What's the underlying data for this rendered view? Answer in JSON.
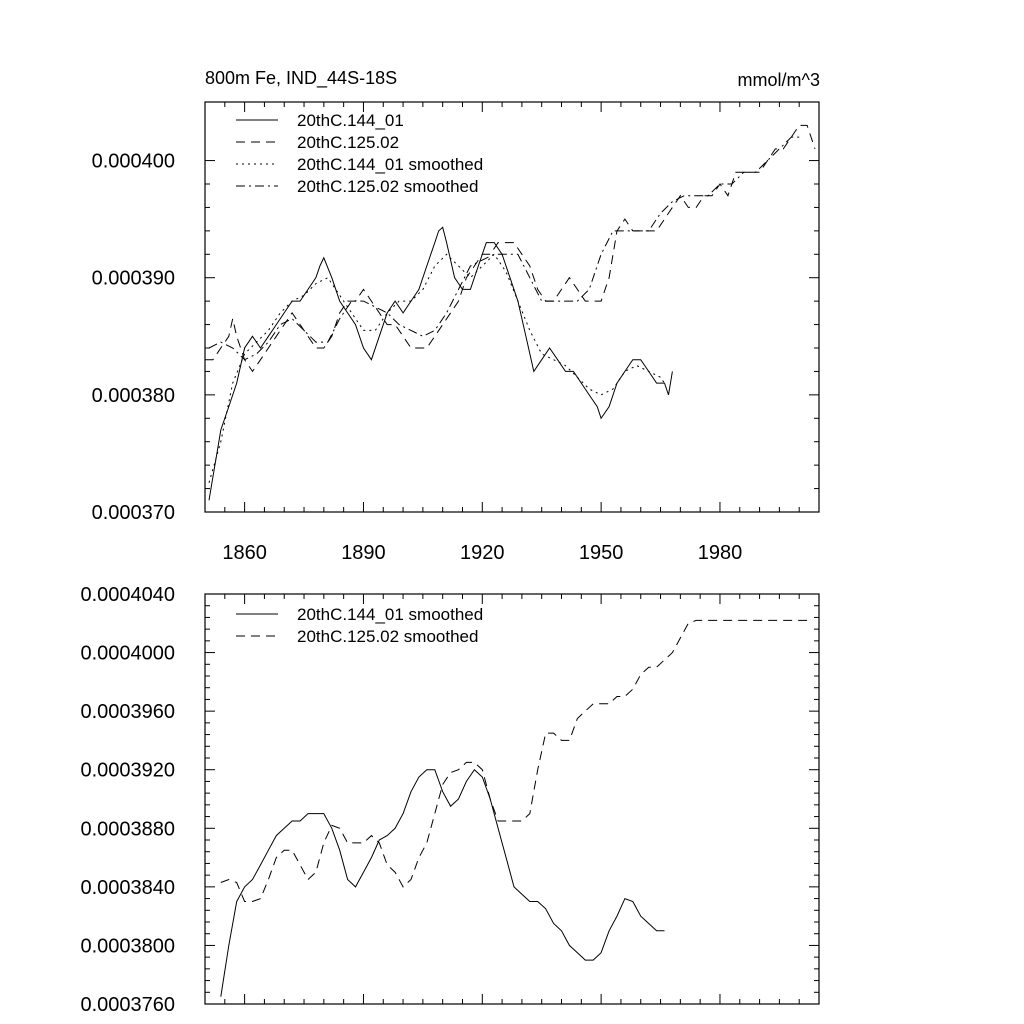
{
  "chart_data": [
    {
      "id": "top",
      "type": "line",
      "title": "800m Fe, IND_44S-18S",
      "units": "mmol/m^3",
      "xlabel": "",
      "ylabel": "",
      "xlim": [
        1850,
        2005
      ],
      "ylim": [
        0.00037,
        0.000405
      ],
      "x_ticks": [
        1860,
        1890,
        1920,
        1950,
        1980
      ],
      "x_tick_labels": [
        "1860",
        "1890",
        "1920",
        "1950",
        "1980"
      ],
      "y_ticks": [
        0.00037,
        0.00038,
        0.00039,
        0.0004
      ],
      "y_tick_labels": [
        "0.000370",
        "0.000380",
        "0.000390",
        "0.000400"
      ],
      "legend_position": "top-left",
      "series": [
        {
          "name": "20thC.144_01",
          "style": "solid",
          "x": [
            1851,
            1852,
            1853,
            1854,
            1856,
            1858,
            1860,
            1862,
            1864,
            1866,
            1868,
            1870,
            1872,
            1874,
            1876,
            1878,
            1879,
            1880,
            1882,
            1884,
            1886,
            1888,
            1890,
            1892,
            1894,
            1896,
            1898,
            1900,
            1902,
            1904,
            1906,
            1908,
            1909,
            1910,
            1911,
            1913,
            1915,
            1917,
            1919,
            1921,
            1923,
            1925,
            1927,
            1929,
            1931,
            1933,
            1935,
            1937,
            1939,
            1941,
            1943,
            1945,
            1947,
            1949,
            1950,
            1952,
            1954,
            1956,
            1958,
            1960,
            1962,
            1964,
            1966,
            1967,
            1968
          ],
          "y": [
            0.000371,
            0.000373,
            0.000375,
            0.000377,
            0.000379,
            0.000381,
            0.000384,
            0.000385,
            0.000384,
            0.000385,
            0.000386,
            0.000387,
            0.000388,
            0.000388,
            0.000389,
            0.00039,
            0.000391,
            0.0003917,
            0.00039,
            0.000388,
            0.000387,
            0.000386,
            0.000384,
            0.000383,
            0.000385,
            0.000387,
            0.000388,
            0.000387,
            0.000388,
            0.000389,
            0.000391,
            0.000393,
            0.000394,
            0.0003943,
            0.000393,
            0.00039,
            0.000389,
            0.000389,
            0.000391,
            0.000393,
            0.000393,
            0.000392,
            0.00039,
            0.000388,
            0.000385,
            0.000382,
            0.000383,
            0.000384,
            0.000383,
            0.000382,
            0.000382,
            0.000381,
            0.00038,
            0.000379,
            0.000378,
            0.000379,
            0.000381,
            0.000382,
            0.000383,
            0.000383,
            0.000382,
            0.000381,
            0.000381,
            0.00038,
            0.000382
          ]
        },
        {
          "name": "20thC.125.02",
          "style": "dashed",
          "x": [
            1850,
            1852,
            1854,
            1856,
            1857,
            1858,
            1860,
            1862,
            1864,
            1866,
            1868,
            1870,
            1872,
            1874,
            1876,
            1878,
            1880,
            1882,
            1884,
            1886,
            1888,
            1890,
            1892,
            1894,
            1896,
            1898,
            1900,
            1902,
            1904,
            1906,
            1908,
            1910,
            1912,
            1914,
            1916,
            1918,
            1920,
            1922,
            1924,
            1926,
            1928,
            1930,
            1932,
            1934,
            1936,
            1938,
            1940,
            1942,
            1944,
            1946,
            1948,
            1950,
            1952,
            1954,
            1956,
            1958,
            1960,
            1962,
            1964,
            1966,
            1968,
            1970,
            1972,
            1974,
            1976,
            1978,
            1980,
            1982,
            1984,
            1986,
            1988,
            1990,
            1992,
            1994,
            1996,
            1998,
            2000,
            2002,
            2004
          ],
          "y": [
            0.000383,
            0.000383,
            0.000384,
            0.000385,
            0.0003865,
            0.000385,
            0.000383,
            0.000382,
            0.000383,
            0.000384,
            0.000385,
            0.000386,
            0.000387,
            0.000386,
            0.000385,
            0.000384,
            0.000384,
            0.000385,
            0.000387,
            0.000388,
            0.000388,
            0.000389,
            0.000388,
            0.000387,
            0.000386,
            0.000386,
            0.000385,
            0.000384,
            0.000384,
            0.000384,
            0.000385,
            0.000386,
            0.000387,
            0.000388,
            0.00039,
            0.000391,
            0.000392,
            0.000392,
            0.000393,
            0.000393,
            0.000393,
            0.000392,
            0.000391,
            0.000389,
            0.000388,
            0.000388,
            0.000389,
            0.00039,
            0.000389,
            0.000388,
            0.000388,
            0.000388,
            0.00039,
            0.000394,
            0.000395,
            0.000394,
            0.000394,
            0.000394,
            0.000394,
            0.000395,
            0.000396,
            0.000397,
            0.000396,
            0.000396,
            0.000397,
            0.000397,
            0.000398,
            0.000397,
            0.000399,
            0.000399,
            0.000399,
            0.000399,
            0.0004,
            0.000401,
            0.000401,
            0.000402,
            0.000403,
            0.000403,
            0.000401
          ]
        },
        {
          "name": "20thC.144_01 smoothed",
          "style": "dotted",
          "x": [
            1851,
            1854,
            1857,
            1860,
            1863,
            1866,
            1869,
            1872,
            1875,
            1878,
            1881,
            1884,
            1887,
            1890,
            1893,
            1896,
            1899,
            1902,
            1905,
            1908,
            1911,
            1914,
            1917,
            1920,
            1923,
            1926,
            1929,
            1932,
            1935,
            1938,
            1941,
            1944,
            1947,
            1950,
            1953,
            1956,
            1959,
            1962,
            1965,
            1966
          ],
          "y": [
            0.0003725,
            0.000376,
            0.000381,
            0.0003835,
            0.0003845,
            0.0003855,
            0.000387,
            0.000388,
            0.0003885,
            0.0003895,
            0.00039,
            0.0003885,
            0.000387,
            0.0003855,
            0.0003855,
            0.000387,
            0.000388,
            0.000388,
            0.000389,
            0.000391,
            0.000392,
            0.000391,
            0.00039,
            0.000391,
            0.000392,
            0.0003905,
            0.000388,
            0.0003855,
            0.0003835,
            0.000383,
            0.0003825,
            0.0003815,
            0.0003805,
            0.00038,
            0.0003805,
            0.000382,
            0.0003825,
            0.000382,
            0.0003815,
            0.000381
          ]
        },
        {
          "name": "20thC.125.02 smoothed",
          "style": "dashdot",
          "x": [
            1851,
            1854,
            1857,
            1860,
            1863,
            1866,
            1869,
            1872,
            1875,
            1878,
            1881,
            1884,
            1887,
            1890,
            1893,
            1896,
            1899,
            1902,
            1905,
            1908,
            1911,
            1914,
            1917,
            1920,
            1923,
            1926,
            1929,
            1932,
            1935,
            1938,
            1941,
            1944,
            1947,
            1950,
            1953,
            1956,
            1959,
            1962,
            1965,
            1968,
            1971,
            1974,
            1977,
            1980,
            1983,
            1986,
            1989,
            1992,
            1995,
            1998,
            2001
          ],
          "y": [
            0.000384,
            0.0003845,
            0.000384,
            0.000383,
            0.0003835,
            0.0003845,
            0.000386,
            0.0003865,
            0.0003855,
            0.0003845,
            0.0003845,
            0.0003865,
            0.000388,
            0.000388,
            0.0003875,
            0.000387,
            0.000386,
            0.0003855,
            0.000385,
            0.0003855,
            0.000387,
            0.000389,
            0.000391,
            0.0003915,
            0.000392,
            0.000392,
            0.000392,
            0.00039,
            0.000388,
            0.000388,
            0.000388,
            0.000388,
            0.000389,
            0.000392,
            0.000394,
            0.000394,
            0.000394,
            0.000394,
            0.0003955,
            0.0003965,
            0.000397,
            0.000397,
            0.000397,
            0.000398,
            0.000398,
            0.000399,
            0.000399,
            0.0004,
            0.000401,
            0.000402,
            0.000402
          ]
        }
      ]
    },
    {
      "id": "bottom",
      "type": "line",
      "title": "",
      "xlabel": "",
      "ylabel": "",
      "xlim": [
        1850,
        2005
      ],
      "ylim": [
        0.000376,
        0.000404
      ],
      "x_ticks": [
        1860,
        1890,
        1920,
        1950,
        1980
      ],
      "x_tick_labels": [],
      "y_ticks": [
        0.000376,
        0.00038,
        0.000384,
        0.000388,
        0.000392,
        0.000396,
        0.0004,
        0.000404
      ],
      "y_tick_labels": [
        "0.0003760",
        "0.0003800",
        "0.0003840",
        "0.0003880",
        "0.0003920",
        "0.0003960",
        "0.0004000",
        "0.0004040"
      ],
      "legend_position": "top-left",
      "series": [
        {
          "name": "20thC.144_01 smoothed",
          "style": "solid",
          "x": [
            1854,
            1856,
            1858,
            1860,
            1862,
            1864,
            1866,
            1868,
            1870,
            1872,
            1874,
            1876,
            1878,
            1880,
            1882,
            1884,
            1886,
            1888,
            1890,
            1892,
            1894,
            1896,
            1898,
            1900,
            1902,
            1904,
            1906,
            1908,
            1910,
            1912,
            1914,
            1916,
            1918,
            1920,
            1922,
            1924,
            1926,
            1928,
            1930,
            1932,
            1934,
            1936,
            1938,
            1940,
            1942,
            1944,
            1946,
            1948,
            1950,
            1952,
            1954,
            1956,
            1958,
            1960,
            1962,
            1964,
            1966
          ],
          "y": [
            0.0003765,
            0.00038,
            0.000383,
            0.000384,
            0.0003845,
            0.0003855,
            0.0003865,
            0.0003875,
            0.000388,
            0.0003885,
            0.0003885,
            0.000389,
            0.000389,
            0.000389,
            0.000388,
            0.0003865,
            0.0003845,
            0.000384,
            0.000385,
            0.000386,
            0.0003872,
            0.0003875,
            0.000388,
            0.000389,
            0.0003905,
            0.0003915,
            0.000392,
            0.000392,
            0.0003905,
            0.0003895,
            0.00039,
            0.0003912,
            0.000392,
            0.0003915,
            0.00039,
            0.000388,
            0.000386,
            0.000384,
            0.0003835,
            0.000383,
            0.000383,
            0.0003825,
            0.0003815,
            0.000381,
            0.00038,
            0.0003795,
            0.000379,
            0.000379,
            0.0003795,
            0.000381,
            0.000382,
            0.0003832,
            0.000383,
            0.000382,
            0.0003815,
            0.000381,
            0.000381
          ]
        },
        {
          "name": "20thC.125.02 smoothed",
          "style": "dashed",
          "x": [
            1854,
            1856,
            1858,
            1860,
            1862,
            1864,
            1866,
            1868,
            1870,
            1872,
            1874,
            1876,
            1878,
            1880,
            1882,
            1884,
            1886,
            1888,
            1890,
            1892,
            1894,
            1896,
            1898,
            1900,
            1902,
            1904,
            1906,
            1908,
            1910,
            1912,
            1914,
            1916,
            1918,
            1920,
            1922,
            1924,
            1926,
            1928,
            1930,
            1932,
            1934,
            1936,
            1938,
            1940,
            1942,
            1944,
            1946,
            1948,
            1950,
            1952,
            1954,
            1956,
            1958,
            1960,
            1962,
            1964,
            1966,
            1968,
            1970,
            1972,
            1974,
            1976,
            1978,
            1980,
            1982,
            1984,
            1986,
            1988,
            1990,
            1992,
            1994,
            1996,
            1998,
            2000,
            2002
          ],
          "y": [
            0.0003843,
            0.0003845,
            0.0003843,
            0.000383,
            0.000383,
            0.0003832,
            0.0003845,
            0.000386,
            0.0003865,
            0.0003865,
            0.0003855,
            0.0003845,
            0.000385,
            0.000387,
            0.0003882,
            0.000388,
            0.000387,
            0.000387,
            0.000387,
            0.0003875,
            0.000387,
            0.0003855,
            0.000385,
            0.000384,
            0.0003845,
            0.000386,
            0.000387,
            0.000389,
            0.000391,
            0.0003918,
            0.000392,
            0.0003925,
            0.0003925,
            0.000392,
            0.00039,
            0.0003885,
            0.0003885,
            0.0003885,
            0.0003885,
            0.000389,
            0.000392,
            0.0003945,
            0.0003945,
            0.000394,
            0.000394,
            0.0003955,
            0.000396,
            0.0003965,
            0.0003965,
            0.0003965,
            0.000397,
            0.000397,
            0.0003975,
            0.0003985,
            0.000399,
            0.000399,
            0.0003995,
            0.0004,
            0.000401,
            0.000402,
            0.0004022,
            0.0004022,
            0.0004022,
            0.0004022,
            0.0004022,
            0.0004022,
            0.0004022,
            0.0004022,
            0.0004022,
            0.0004022,
            0.0004022,
            0.0004022,
            0.0004022,
            0.0004022,
            0.0004022
          ]
        }
      ]
    }
  ]
}
